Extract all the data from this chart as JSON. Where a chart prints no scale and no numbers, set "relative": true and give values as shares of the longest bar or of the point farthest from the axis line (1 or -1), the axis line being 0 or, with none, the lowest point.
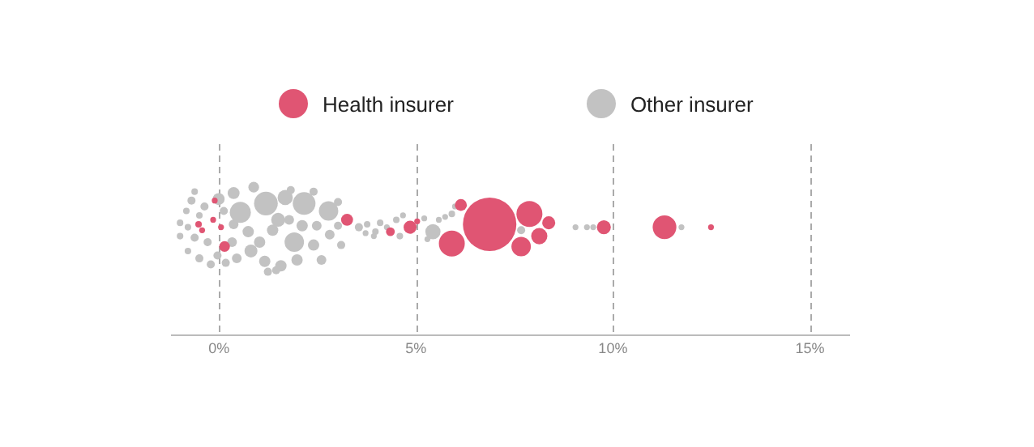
{
  "chart_data": {
    "type": "bubble",
    "relative": true,
    "legend": "top",
    "grid": "x",
    "tick_labels": "x",
    "xlim": [
      -1.2,
      16
    ],
    "xticks": [
      {
        "value": 0,
        "label": "0%"
      },
      {
        "value": 5,
        "label": "5%"
      },
      {
        "value": 10,
        "label": "10%"
      },
      {
        "value": 15,
        "label": "15%"
      }
    ],
    "series": [
      {
        "name": "Health insurer",
        "color": "#e05573",
        "x": [
          -0.11,
          -0.52,
          -0.15,
          -0.43,
          0.05,
          0.14,
          3.25,
          4.35,
          4.85,
          5.03,
          6.14,
          5.91,
          6.87,
          7.88,
          8.37,
          8.13,
          7.67,
          9.77,
          11.31,
          12.49
        ],
        "values": [
          0.91,
          0.75,
          0.78,
          0.71,
          0.73,
          0.6,
          0.78,
          0.7,
          0.73,
          0.77,
          0.88,
          0.62,
          0.75,
          0.82,
          0.76,
          0.67,
          0.6,
          0.73,
          0.73,
          0.73
        ],
        "sizes": [
          0.012,
          0.015,
          0.012,
          0.012,
          0.012,
          0.04,
          0.05,
          0.027,
          0.059,
          0.012,
          0.05,
          0.235,
          1,
          0.235,
          0.059,
          0.092,
          0.132,
          0.068,
          0.196,
          0.012
        ]
      },
      {
        "name": "Other insurer",
        "color": "#c2c2c2",
        "x": [
          -0.99,
          -0.99,
          -0.83,
          -0.79,
          -0.7,
          -0.62,
          -0.5,
          -0.37,
          -0.29,
          -0.21,
          -0.04,
          0.17,
          0.33,
          0.45,
          0.37,
          0.12,
          -0.5,
          -0.79,
          0.74,
          1.03,
          1.16,
          1.36,
          1.57,
          1.78,
          1.98,
          2.11,
          2.4,
          2.48,
          2.6,
          2.81,
          3.02,
          3.02,
          3.1,
          2.4,
          1.24,
          1.45,
          1.82,
          -0.62,
          0.54,
          1.19,
          2.16,
          2.78,
          1.68,
          0.88,
          0.37,
          1.91,
          1.5,
          0.81,
          -0.01,
          5.43,
          3.55,
          3.76,
          3.97,
          4.09,
          4.26,
          4.5,
          4.59,
          4.67,
          3.93,
          3.72,
          5.21,
          5.29,
          5.58,
          5.74,
          5.91,
          5.99,
          7.67,
          9.05,
          9.34,
          9.5,
          11.74
        ],
        "values": [
          0.76,
          0.67,
          0.84,
          0.57,
          0.91,
          0.66,
          0.52,
          0.87,
          0.63,
          0.48,
          0.54,
          0.49,
          0.63,
          0.52,
          0.75,
          0.84,
          0.81,
          0.73,
          0.7,
          0.63,
          0.5,
          0.71,
          0.47,
          0.78,
          0.51,
          0.74,
          0.61,
          0.74,
          0.51,
          0.68,
          0.74,
          0.9,
          0.61,
          0.97,
          0.43,
          0.44,
          0.98,
          0.97,
          0.83,
          0.89,
          0.89,
          0.84,
          0.93,
          1,
          0.96,
          0.63,
          0.78,
          0.57,
          0.92,
          0.7,
          0.73,
          0.75,
          0.7,
          0.76,
          0.73,
          0.78,
          0.67,
          0.81,
          0.67,
          0.69,
          0.79,
          0.65,
          0.78,
          0.8,
          0.82,
          0.87,
          0.71,
          0.73,
          0.73,
          0.73,
          0.73
        ],
        "sizes": [
          0.015,
          0.015,
          0.015,
          0.015,
          0.023,
          0.023,
          0.023,
          0.023,
          0.023,
          0.023,
          0.023,
          0.023,
          0.033,
          0.033,
          0.033,
          0.023,
          0.015,
          0.015,
          0.045,
          0.045,
          0.045,
          0.045,
          0.045,
          0.033,
          0.045,
          0.045,
          0.045,
          0.033,
          0.033,
          0.033,
          0.023,
          0.023,
          0.023,
          0.023,
          0.023,
          0.023,
          0.023,
          0.015,
          0.155,
          0.196,
          0.18,
          0.132,
          0.081,
          0.04,
          0.05,
          0.132,
          0.068,
          0.059,
          0.05,
          0.081,
          0.023,
          0.015,
          0.015,
          0.015,
          0.012,
          0.015,
          0.015,
          0.012,
          0.012,
          0.012,
          0.012,
          0.012,
          0.012,
          0.012,
          0.015,
          0.012,
          0.023,
          0.012,
          0.012,
          0.012,
          0.012
        ]
      }
    ]
  }
}
